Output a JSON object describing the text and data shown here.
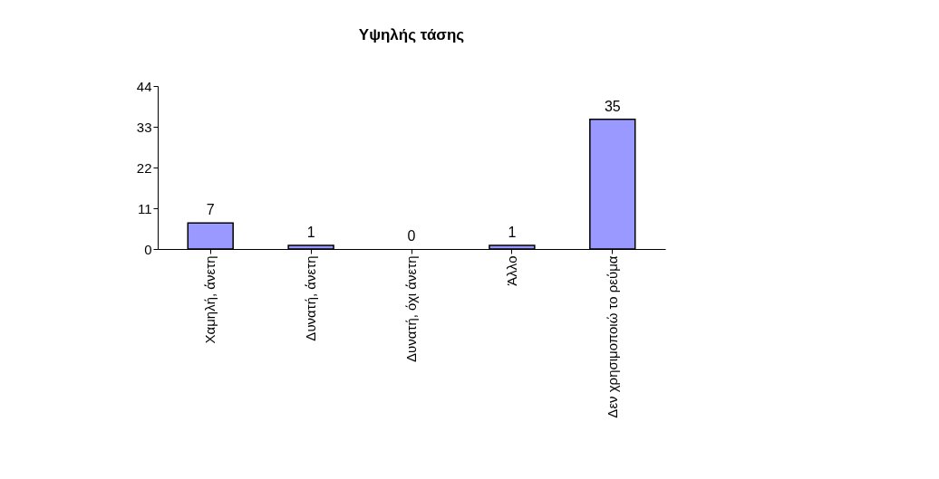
{
  "chart_data": {
    "type": "bar",
    "title": "Υψηλής τάσης",
    "categories": [
      "Χαμηλή, άνετη",
      "Δυνατή, άνετη",
      "Δυνατή, όχι άνετη",
      "Άλλο",
      "Δεν χρησιμοποιώ το ρεύμα"
    ],
    "values": [
      7,
      1,
      0,
      1,
      35
    ],
    "color": "#9999ff",
    "ylim": [
      0,
      44
    ],
    "yticks": [
      0,
      11,
      22,
      33,
      44
    ],
    "grid": false,
    "data_labels": true
  }
}
